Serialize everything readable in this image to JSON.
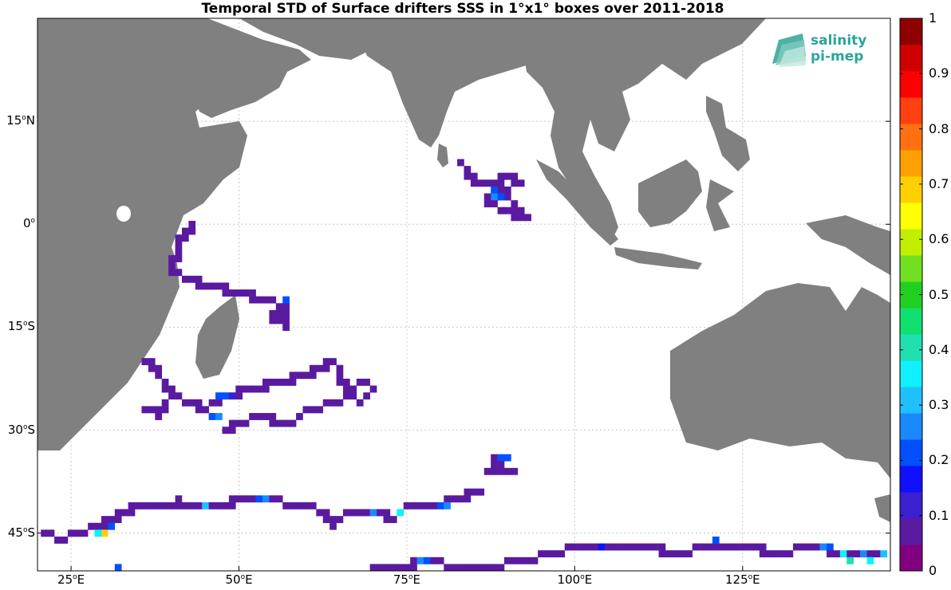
{
  "title": "Temporal STD of Surface drifters SSS in 1°x1° boxes over 2011-2018",
  "logo": {
    "line1": "salinity",
    "line2": "pi-mep",
    "color": "#2aa59a"
  },
  "colors": {
    "land": "#808080",
    "ocean": "#ffffff",
    "grid": "#c8c8c8"
  },
  "lat_labels": [
    {
      "deg": "15",
      "hemi": "N",
      "lat": 15
    },
    {
      "deg": "0",
      "hemi": "",
      "lat": 0
    },
    {
      "deg": "15",
      "hemi": "S",
      "lat": -15
    },
    {
      "deg": "30",
      "hemi": "S",
      "lat": -30
    },
    {
      "deg": "45",
      "hemi": "S",
      "lat": -45
    }
  ],
  "lon_labels": [
    {
      "deg": "25",
      "hemi": "E",
      "lon": 25
    },
    {
      "deg": "50",
      "hemi": "E",
      "lon": 50
    },
    {
      "deg": "75",
      "hemi": "E",
      "lon": 75
    },
    {
      "deg": "100",
      "hemi": "E",
      "lon": 100
    },
    {
      "deg": "125",
      "hemi": "E",
      "lon": 125
    }
  ],
  "colorbar": {
    "ticks": [
      "0",
      "0.1",
      "0.2",
      "0.3",
      "0.4",
      "0.5",
      "0.6",
      "0.7",
      "0.8",
      "0.9",
      "1"
    ],
    "min": 0,
    "max": 1,
    "colors": [
      "#800080",
      "#5a1aa0",
      "#3a20d0",
      "#1010ff",
      "#0050ff",
      "#1a88ff",
      "#20c0ff",
      "#10f0ff",
      "#20e0b0",
      "#10e070",
      "#20d020",
      "#70e020",
      "#c0f000",
      "#ffff00",
      "#ffd000",
      "#ffa000",
      "#ff7010",
      "#ff4010",
      "#ff0000",
      "#d00000",
      "#900000"
    ]
  },
  "chart_data": {
    "type": "heatmap",
    "title": "Temporal STD of Surface drifters SSS in 1°x1° boxes over 2011-2018",
    "lon_range": [
      20,
      147
    ],
    "lat_range": [
      -50.5,
      30
    ],
    "cell_size_deg": 1,
    "colorbar_range": [
      0,
      1
    ],
    "grid": true,
    "default_value": 0.05,
    "tracks": [
      {
        "name": "Bay of Bengal",
        "points": [
          [
            83,
            9
          ],
          [
            84,
            7
          ],
          [
            85,
            6
          ],
          [
            88,
            6
          ],
          [
            90,
            7
          ],
          [
            92,
            6
          ],
          [
            89,
            5
          ],
          [
            87,
            4
          ],
          [
            87,
            3
          ],
          [
            89,
            2
          ],
          [
            91,
            1
          ],
          [
            93,
            1
          ],
          [
            91,
            2
          ],
          [
            90,
            4
          ],
          [
            88,
            6
          ]
        ]
      },
      {
        "name": "Somali coast",
        "points": [
          [
            43,
            -0.5
          ],
          [
            41,
            -3
          ],
          [
            40,
            -7
          ],
          [
            42,
            -8
          ],
          [
            45,
            -9
          ],
          [
            50,
            -10
          ],
          [
            53,
            -11
          ],
          [
            57,
            -12
          ],
          [
            57,
            -15
          ],
          [
            55,
            -14
          ],
          [
            57,
            -11
          ]
        ]
      },
      {
        "name": "Mozambique Channel",
        "points": [
          [
            36,
            -20
          ],
          [
            38,
            -22
          ],
          [
            40,
            -25
          ],
          [
            38,
            -27
          ],
          [
            36,
            -27
          ],
          [
            38,
            -28
          ],
          [
            40,
            -25
          ],
          [
            42,
            -26
          ],
          [
            45,
            -27
          ],
          [
            46,
            -26
          ],
          [
            48,
            -25
          ],
          [
            52,
            -24
          ],
          [
            56,
            -23
          ],
          [
            60,
            -22
          ],
          [
            64,
            -20
          ],
          [
            65,
            -22
          ],
          [
            66,
            -25
          ],
          [
            68,
            -26
          ],
          [
            70,
            -24
          ],
          [
            68,
            -23
          ],
          [
            65,
            -26
          ],
          [
            60,
            -27
          ],
          [
            58,
            -29
          ],
          [
            56,
            -29
          ],
          [
            53,
            -28
          ],
          [
            50,
            -29
          ],
          [
            48,
            -30
          ]
        ]
      },
      {
        "name": "South central",
        "points": [
          [
            88,
            -34
          ],
          [
            90,
            -34
          ],
          [
            88,
            -35
          ],
          [
            87,
            -36
          ],
          [
            91,
            -36
          ]
        ]
      },
      {
        "name": "Southern track 1",
        "points": [
          [
            21,
            -45
          ],
          [
            23,
            -46
          ],
          [
            26,
            -45
          ],
          [
            29,
            -44
          ],
          [
            31,
            -43
          ],
          [
            33,
            -42
          ],
          [
            35,
            -41
          ],
          [
            37,
            -41
          ],
          [
            41,
            -40.5
          ],
          [
            45,
            -41
          ],
          [
            49,
            -40.5
          ],
          [
            53,
            -40
          ],
          [
            56,
            -40.5
          ],
          [
            60,
            -41
          ],
          [
            62,
            -42
          ],
          [
            64,
            -44
          ],
          [
            66,
            -42
          ],
          [
            70,
            -42
          ],
          [
            73,
            -43
          ],
          [
            75,
            -41
          ],
          [
            79,
            -41
          ],
          [
            82,
            -40
          ],
          [
            86,
            -39
          ]
        ]
      },
      {
        "name": "Southern track 2",
        "points": [
          [
            70,
            -50
          ],
          [
            74,
            -50
          ],
          [
            78,
            -49
          ],
          [
            82,
            -50
          ],
          [
            87,
            -50
          ],
          [
            92,
            -49
          ],
          [
            97,
            -48
          ],
          [
            100,
            -47
          ],
          [
            105,
            -47
          ],
          [
            110,
            -47
          ],
          [
            115,
            -48
          ],
          [
            120,
            -47
          ],
          [
            125,
            -47
          ],
          [
            130,
            -48
          ],
          [
            135,
            -47
          ],
          [
            140,
            -48
          ],
          [
            145,
            -48
          ]
        ]
      }
    ],
    "highlight_cells": [
      {
        "lon": 88,
        "lat": 5,
        "value": 0.2
      },
      {
        "lon": 89,
        "lat": 4,
        "value": 0.2
      },
      {
        "lon": 88,
        "lat": 4,
        "value": 0.28
      },
      {
        "lon": 57,
        "lat": -11,
        "value": 0.22
      },
      {
        "lon": 47,
        "lat": -25,
        "value": 0.22
      },
      {
        "lon": 48,
        "lat": -25,
        "value": 0.2
      },
      {
        "lon": 49,
        "lat": -25,
        "value": 0.14
      },
      {
        "lon": 46,
        "lat": -28,
        "value": 0.2
      },
      {
        "lon": 47,
        "lat": -28,
        "value": 0.24
      },
      {
        "lon": 89,
        "lat": -34,
        "value": 0.2
      },
      {
        "lon": 90,
        "lat": -34,
        "value": 0.22
      },
      {
        "lon": 30,
        "lat": -45,
        "value": 0.68
      },
      {
        "lon": 29,
        "lat": -45,
        "value": 0.35
      },
      {
        "lon": 31,
        "lat": -44,
        "value": 0.2
      },
      {
        "lon": 45,
        "lat": -41,
        "value": 0.32
      },
      {
        "lon": 53,
        "lat": -40,
        "value": 0.2
      },
      {
        "lon": 54,
        "lat": -40,
        "value": 0.26
      },
      {
        "lon": 70,
        "lat": -42,
        "value": 0.26
      },
      {
        "lon": 74,
        "lat": -42,
        "value": 0.34
      },
      {
        "lon": 80,
        "lat": -41,
        "value": 0.2
      },
      {
        "lon": 81,
        "lat": -41,
        "value": 0.24
      },
      {
        "lon": 77,
        "lat": -49,
        "value": 0.26
      },
      {
        "lon": 78,
        "lat": -49,
        "value": 0.22
      },
      {
        "lon": 104,
        "lat": -47,
        "value": 0.15
      },
      {
        "lon": 121,
        "lat": -46,
        "value": 0.2
      },
      {
        "lon": 137,
        "lat": -47,
        "value": 0.26
      },
      {
        "lon": 138,
        "lat": -47,
        "value": 0.22
      },
      {
        "lon": 140,
        "lat": -48,
        "value": 0.38
      },
      {
        "lon": 141,
        "lat": -49,
        "value": 0.4
      },
      {
        "lon": 143,
        "lat": -48,
        "value": 0.28
      },
      {
        "lon": 144,
        "lat": -49,
        "value": 0.36
      },
      {
        "lon": 146,
        "lat": -48,
        "value": 0.3
      },
      {
        "lon": 32,
        "lat": -50,
        "value": 0.2
      }
    ]
  }
}
